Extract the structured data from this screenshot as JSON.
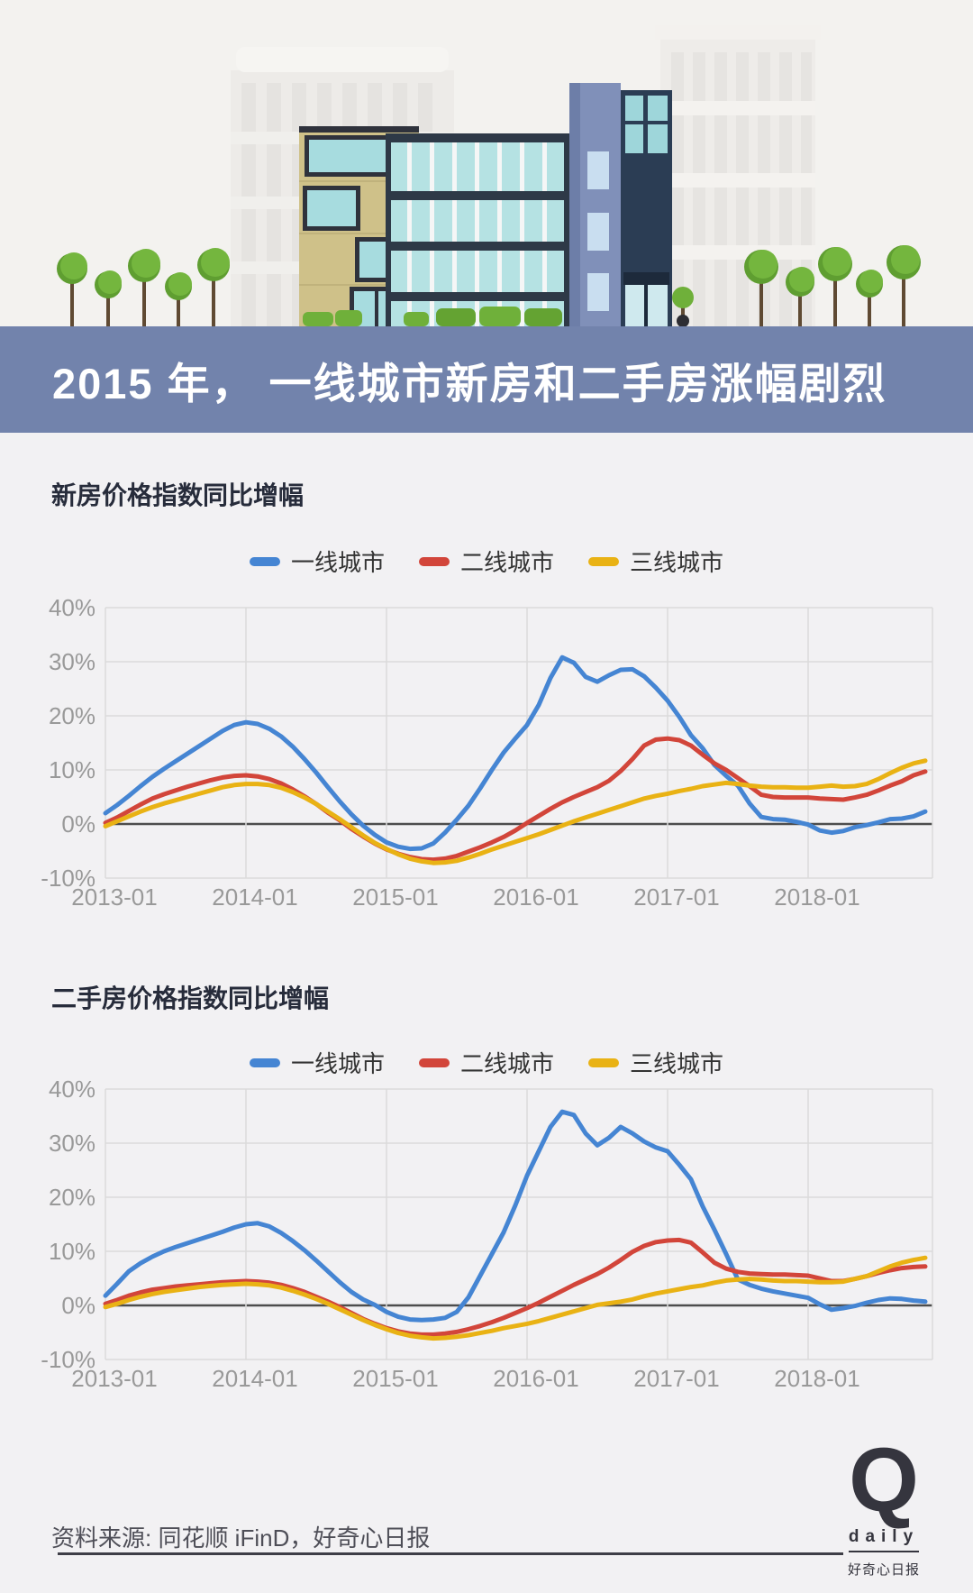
{
  "hero": {
    "banner_title": "2015 年， 一线城市新房和二手房涨幅剧烈",
    "banner_bg": "#7283ac"
  },
  "colors": {
    "tier1": "#4585d3",
    "tier2": "#d2453a",
    "tier3": "#e9b214",
    "zero_line": "#4d4d4d",
    "grid": "#dbdbdb",
    "axis_text": "#999999"
  },
  "chart_data": [
    {
      "type": "line",
      "id": "new-home",
      "title": "新房价格指数同比增幅",
      "x_start": "2013-01",
      "x_interval": "month",
      "x_tick_labels": [
        "2013-01",
        "2014-01",
        "2015-01",
        "2016-01",
        "2017-01",
        "2018-01"
      ],
      "y_tick_labels": [
        "40%",
        "30%",
        "20%",
        "10%",
        "0%",
        "-10%"
      ],
      "ylim": [
        -10,
        40
      ],
      "grid": true,
      "legend_position": "top-center",
      "series": [
        {
          "name": "一线城市",
          "color": "#4585d3",
          "values": [
            2.0,
            3.5,
            5.2,
            7.0,
            8.7,
            10.2,
            11.6,
            13.0,
            14.4,
            15.8,
            17.2,
            18.3,
            18.8,
            18.5,
            17.6,
            16.2,
            14.3,
            12.0,
            9.5,
            6.8,
            4.2,
            1.8,
            -0.3,
            -2.0,
            -3.4,
            -4.2,
            -4.6,
            -4.5,
            -3.6,
            -1.6,
            0.8,
            3.4,
            6.6,
            10.0,
            13.2,
            15.8,
            18.3,
            22.0,
            27.0,
            30.8,
            29.8,
            27.2,
            26.3,
            27.5,
            28.5,
            28.6,
            27.3,
            25.2,
            22.8,
            19.8,
            16.4,
            14.0,
            10.9,
            8.9,
            7.1,
            3.8,
            1.3,
            0.9,
            0.8,
            0.4,
            -0.1,
            -1.2,
            -1.6,
            -1.3,
            -0.6,
            -0.2,
            0.3,
            0.9,
            1.0,
            1.4,
            2.3
          ]
        },
        {
          "name": "二线城市",
          "color": "#d2453a",
          "values": [
            0.2,
            1.2,
            2.4,
            3.6,
            4.7,
            5.5,
            6.2,
            6.9,
            7.5,
            8.1,
            8.6,
            8.9,
            9.0,
            8.8,
            8.3,
            7.5,
            6.4,
            5.1,
            3.7,
            2.1,
            0.7,
            -0.9,
            -2.3,
            -3.6,
            -4.7,
            -5.5,
            -6.1,
            -6.5,
            -6.6,
            -6.4,
            -5.9,
            -5.1,
            -4.3,
            -3.4,
            -2.4,
            -1.2,
            0.2,
            1.5,
            2.8,
            4.0,
            5.0,
            5.9,
            6.8,
            8.0,
            9.8,
            12.0,
            14.5,
            15.6,
            15.8,
            15.5,
            14.5,
            12.8,
            11.2,
            10.0,
            8.5,
            7.0,
            5.4,
            5.0,
            4.9,
            4.9,
            4.9,
            4.7,
            4.6,
            4.5,
            4.9,
            5.4,
            6.2,
            7.1,
            7.9,
            9.0,
            9.7
          ]
        },
        {
          "name": "三线城市",
          "color": "#e9b214",
          "values": [
            -0.4,
            0.5,
            1.4,
            2.3,
            3.1,
            3.8,
            4.4,
            5.0,
            5.6,
            6.2,
            6.8,
            7.2,
            7.4,
            7.4,
            7.2,
            6.7,
            5.9,
            4.9,
            3.7,
            2.3,
            0.9,
            -0.6,
            -2.1,
            -3.5,
            -4.6,
            -5.6,
            -6.4,
            -6.9,
            -7.2,
            -7.1,
            -6.8,
            -6.2,
            -5.5,
            -4.7,
            -4.0,
            -3.3,
            -2.6,
            -1.9,
            -1.1,
            -0.3,
            0.5,
            1.2,
            1.9,
            2.6,
            3.3,
            4.0,
            4.7,
            5.2,
            5.6,
            6.1,
            6.5,
            7.0,
            7.3,
            7.6,
            7.4,
            7.1,
            6.9,
            6.8,
            6.8,
            6.7,
            6.7,
            6.9,
            7.1,
            6.9,
            7.0,
            7.4,
            8.3,
            9.4,
            10.4,
            11.2,
            11.7
          ]
        }
      ]
    },
    {
      "type": "line",
      "id": "resale-home",
      "title": "二手房价格指数同比增幅",
      "x_start": "2013-01",
      "x_interval": "month",
      "x_tick_labels": [
        "2013-01",
        "2014-01",
        "2015-01",
        "2016-01",
        "2017-01",
        "2018-01"
      ],
      "y_tick_labels": [
        "40%",
        "30%",
        "20%",
        "10%",
        "0%",
        "-10%"
      ],
      "ylim": [
        -10,
        40
      ],
      "grid": true,
      "legend_position": "top-center",
      "series": [
        {
          "name": "一线城市",
          "color": "#4585d3",
          "values": [
            1.8,
            4.0,
            6.3,
            7.8,
            9.0,
            10.0,
            10.8,
            11.5,
            12.2,
            12.9,
            13.6,
            14.4,
            15.0,
            15.2,
            14.6,
            13.4,
            11.9,
            10.2,
            8.3,
            6.3,
            4.3,
            2.5,
            1.1,
            0.1,
            -1.2,
            -2.1,
            -2.6,
            -2.7,
            -2.6,
            -2.3,
            -1.2,
            1.5,
            5.5,
            9.5,
            13.5,
            18.5,
            24.0,
            28.5,
            33.0,
            35.8,
            35.2,
            31.8,
            29.6,
            31.0,
            33.0,
            31.8,
            30.3,
            29.2,
            28.5,
            26.0,
            23.3,
            18.3,
            14.0,
            9.5,
            4.8,
            3.8,
            3.1,
            2.6,
            2.2,
            1.8,
            1.4,
            0.2,
            -0.8,
            -0.5,
            -0.1,
            0.5,
            1.0,
            1.3,
            1.2,
            0.9,
            0.7
          ]
        },
        {
          "name": "二线城市",
          "color": "#d2453a",
          "values": [
            0.3,
            1.0,
            1.8,
            2.4,
            2.9,
            3.2,
            3.5,
            3.7,
            3.9,
            4.1,
            4.3,
            4.4,
            4.5,
            4.4,
            4.2,
            3.8,
            3.2,
            2.5,
            1.6,
            0.7,
            -0.3,
            -1.4,
            -2.5,
            -3.4,
            -4.2,
            -4.8,
            -5.2,
            -5.4,
            -5.4,
            -5.2,
            -4.9,
            -4.4,
            -3.8,
            -3.1,
            -2.3,
            -1.4,
            -0.5,
            0.5,
            1.6,
            2.7,
            3.8,
            4.8,
            5.8,
            7.0,
            8.4,
            9.9,
            11.0,
            11.7,
            12.0,
            12.1,
            11.6,
            9.8,
            7.9,
            6.8,
            6.2,
            5.9,
            5.8,
            5.7,
            5.7,
            5.6,
            5.5,
            5.0,
            4.5,
            4.5,
            4.9,
            5.4,
            6.0,
            6.5,
            6.9,
            7.1,
            7.2
          ]
        },
        {
          "name": "三线城市",
          "color": "#e9b214",
          "values": [
            -0.3,
            0.3,
            1.0,
            1.6,
            2.1,
            2.5,
            2.8,
            3.1,
            3.4,
            3.6,
            3.8,
            3.9,
            4.0,
            3.9,
            3.7,
            3.3,
            2.7,
            2.0,
            1.2,
            0.3,
            -0.7,
            -1.7,
            -2.7,
            -3.6,
            -4.4,
            -5.1,
            -5.6,
            -5.9,
            -6.1,
            -6.0,
            -5.8,
            -5.5,
            -5.1,
            -4.7,
            -4.2,
            -3.8,
            -3.4,
            -2.9,
            -2.3,
            -1.7,
            -1.1,
            -0.5,
            0.1,
            0.4,
            0.7,
            1.1,
            1.7,
            2.2,
            2.6,
            3.0,
            3.4,
            3.7,
            4.2,
            4.6,
            4.8,
            4.9,
            4.8,
            4.6,
            4.5,
            4.5,
            4.4,
            4.3,
            4.3,
            4.4,
            4.9,
            5.4,
            6.3,
            7.2,
            7.9,
            8.4,
            8.8
          ]
        }
      ]
    }
  ],
  "footer": {
    "source": "资料来源: 同花顺 iFinD，好奇心日报",
    "logo": {
      "q": "Q",
      "daily": "daily",
      "cn": "好奇心日报"
    }
  }
}
